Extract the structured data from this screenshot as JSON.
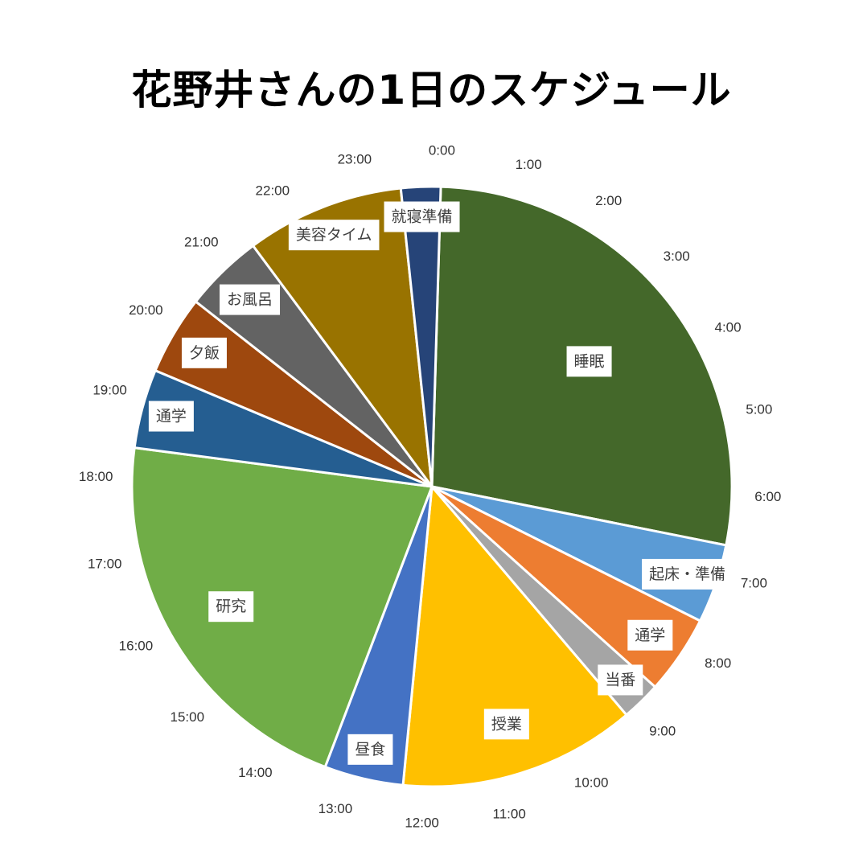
{
  "chart_data": {
    "type": "pie",
    "title": "花野井さんの1日のスケジュール",
    "unit": "hours",
    "start_angle": "top",
    "direction": "clockwise",
    "slices": [
      {
        "label": "睡眠",
        "value": 6.5,
        "color": "#44682A"
      },
      {
        "label": "起床・準備",
        "value": 1.0,
        "color": "#5B9BD5"
      },
      {
        "label": "通学",
        "value": 1.0,
        "color": "#ED7D31"
      },
      {
        "label": "当番",
        "value": 0.5,
        "color": "#A5A5A5"
      },
      {
        "label": "授業",
        "value": 3.0,
        "color": "#FFC000"
      },
      {
        "label": "昼食",
        "value": 1.0,
        "color": "#4472C4"
      },
      {
        "label": "研究",
        "value": 5.0,
        "color": "#70AD47"
      },
      {
        "label": "通学",
        "value": 1.0,
        "color": "#255E91"
      },
      {
        "label": "夕飯",
        "value": 1.0,
        "color": "#9E480E"
      },
      {
        "label": "お風呂",
        "value": 1.0,
        "color": "#636363"
      },
      {
        "label": "美容タイム",
        "value": 2.0,
        "color": "#997300"
      },
      {
        "label": "就寝準備",
        "value": 0.5,
        "color": "#264478"
      }
    ],
    "tick_labels": [
      "0:00",
      "1:00",
      "2:00",
      "3:00",
      "4:00",
      "5:00",
      "6:00",
      "7:00",
      "8:00",
      "9:00",
      "10:00",
      "11:00",
      "12:00",
      "13:00",
      "14:00",
      "15:00",
      "16:00",
      "17:00",
      "18:00",
      "19:00",
      "20:00",
      "21:00",
      "22:00",
      "23:00"
    ]
  }
}
